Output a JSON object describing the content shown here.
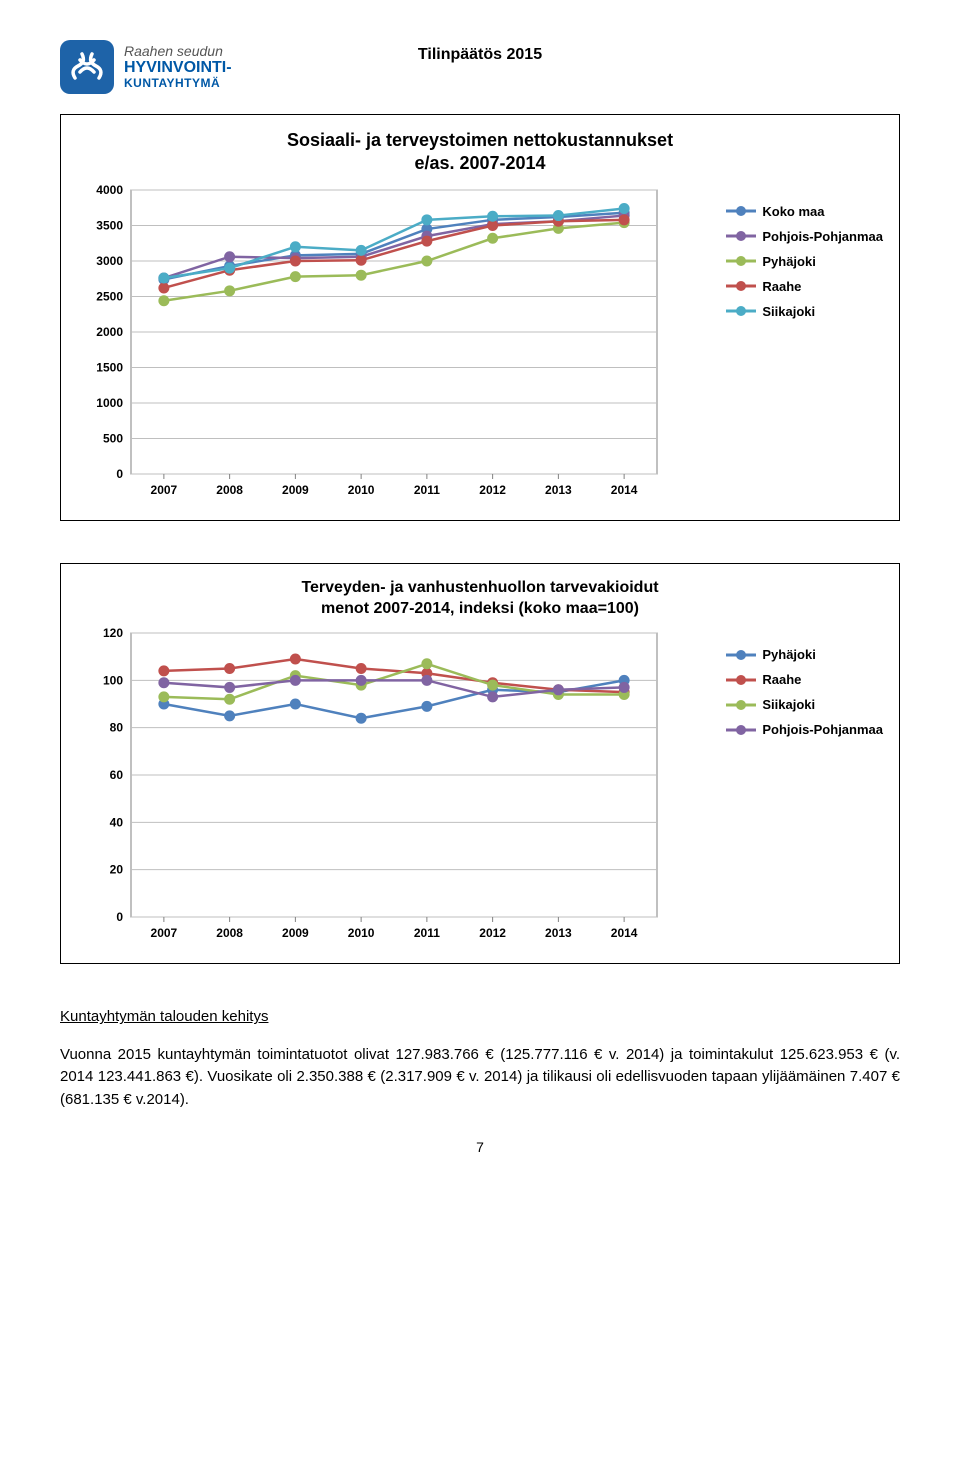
{
  "header": {
    "logo": {
      "line1": "Raahen seudun",
      "line2": "HYVINVOINTI-",
      "line3": "KUNTAYHTYMÄ"
    },
    "doc_title": "Tilinpäätös 2015"
  },
  "chart1": {
    "type": "line",
    "title_l1": "Sosiaali- ja terveystoimen nettokustannukset",
    "title_l2": "e/as. 2007-2014",
    "title_fontsize": 18,
    "x_categories": [
      "2007",
      "2008",
      "2009",
      "2010",
      "2011",
      "2012",
      "2013",
      "2014"
    ],
    "ylim": [
      0,
      4000
    ],
    "ytick_step": 500,
    "y_ticks": [
      "0",
      "500",
      "1000",
      "1500",
      "2000",
      "2500",
      "3000",
      "3500",
      "4000"
    ],
    "background_color": "#ffffff",
    "plot_border_color": "#808080",
    "grid_color": "#bfbfbf",
    "marker_size": 5,
    "line_width": 2.5,
    "series": [
      {
        "name": "Koko maa",
        "color": "#4f81bd",
        "values": [
          2740,
          2930,
          3080,
          3100,
          3450,
          3580,
          3620,
          3680
        ]
      },
      {
        "name": "Pohjois-Pohjanmaa",
        "color": "#8064a2",
        "values": [
          2760,
          3060,
          3040,
          3060,
          3350,
          3520,
          3560,
          3640
        ]
      },
      {
        "name": "Pyhäjoki",
        "color": "#9bbb59",
        "values": [
          2440,
          2580,
          2780,
          2800,
          3000,
          3320,
          3460,
          3540
        ]
      },
      {
        "name": "Raahe",
        "color": "#c0504d",
        "values": [
          2620,
          2870,
          3000,
          3010,
          3280,
          3500,
          3560,
          3580
        ]
      },
      {
        "name": "Siikajoki",
        "color": "#4bacc6",
        "values": [
          2760,
          2900,
          3200,
          3150,
          3580,
          3630,
          3640,
          3740
        ]
      }
    ],
    "legend_order": [
      "Koko maa",
      "Pohjois-Pohjanmaa",
      "Pyhäjoki",
      "Raahe",
      "Siikajoki"
    ]
  },
  "chart2": {
    "type": "line",
    "title_l1": "Terveyden- ja vanhustenhuollon tarvevakioidut",
    "title_l2": "menot 2007-2014, indeksi (koko maa=100)",
    "title_fontsize": 16,
    "x_categories": [
      "2007",
      "2008",
      "2009",
      "2010",
      "2011",
      "2012",
      "2013",
      "2014"
    ],
    "ylim": [
      0,
      120
    ],
    "ytick_step": 20,
    "y_ticks": [
      "0",
      "20",
      "40",
      "60",
      "80",
      "100",
      "120"
    ],
    "background_color": "#ffffff",
    "plot_border_color": "#808080",
    "grid_color": "#bfbfbf",
    "marker_size": 5,
    "line_width": 2.5,
    "series": [
      {
        "name": "Pyhäjoki",
        "color": "#4f81bd",
        "values": [
          90,
          85,
          90,
          84,
          89,
          96,
          95,
          100
        ]
      },
      {
        "name": "Raahe",
        "color": "#c0504d",
        "values": [
          104,
          105,
          109,
          105,
          103,
          99,
          96,
          95
        ]
      },
      {
        "name": "Siikajoki",
        "color": "#9bbb59",
        "values": [
          93,
          92,
          102,
          98,
          107,
          98,
          94,
          94
        ]
      },
      {
        "name": "Pohjois-Pohjanmaa",
        "color": "#8064a2",
        "values": [
          99,
          97,
          100,
          100,
          100,
          93,
          96,
          97
        ]
      }
    ],
    "legend_order": [
      "Pyhäjoki",
      "Raahe",
      "Siikajoki",
      "Pohjois-Pohjanmaa"
    ]
  },
  "body": {
    "section_title": "Kuntayhtymän talouden kehitys",
    "p1": "Vuonna 2015 kuntayhtymän toimintatuotot olivat 127.983.766 € (125.777.116 € v. 2014) ja toimintakulut 125.623.953 € (v. 2014 123.441.863 €). Vuosikate oli 2.350.388 € (2.317.909 € v. 2014) ja tilikausi oli edellisvuoden tapaan ylijäämäinen 7.407 € (681.135 € v.2014)."
  },
  "page_number": "7"
}
